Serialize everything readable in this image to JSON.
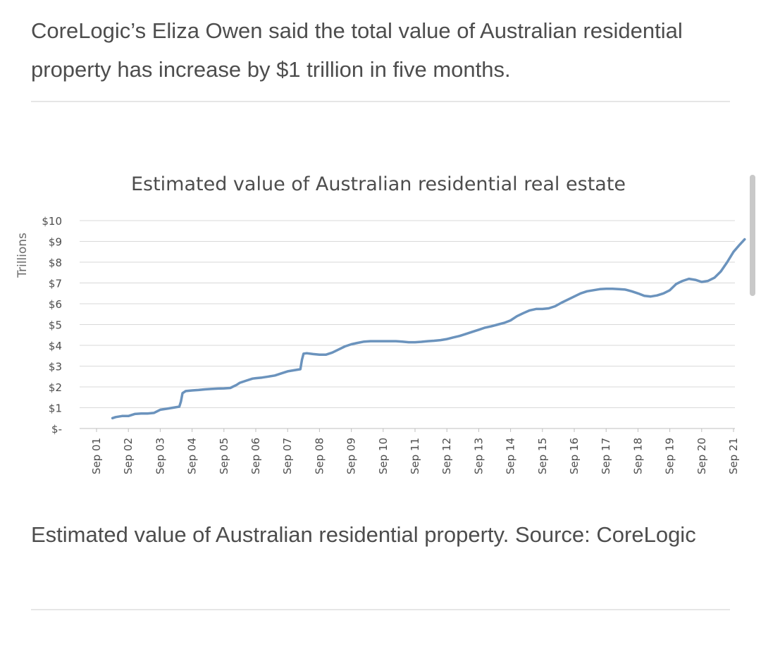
{
  "article": {
    "intro_text": "CoreLogic’s Eliza Owen said the total value of Australian residential property has increase by $1 trillion in five months.",
    "caption_text": "Estimated value of Australian residential property. Source: CoreLogic"
  },
  "colors": {
    "line": "#6b93bd",
    "grid": "#d9d9d9",
    "text": "#4d4d4d"
  },
  "chart_data": {
    "type": "line",
    "title": "Estimated value of Australian residential real estate",
    "ylabel": "Trillions",
    "xlabel": "",
    "ylim": [
      0,
      10
    ],
    "y_tick_labels": [
      "$-",
      "$1",
      "$2",
      "$3",
      "$4",
      "$5",
      "$6",
      "$7",
      "$8",
      "$9",
      "$10"
    ],
    "x_tick_labels": [
      "Sep 01",
      "Sep 02",
      "Sep 03",
      "Sep 04",
      "Sep 05",
      "Sep 06",
      "Sep 07",
      "Sep 08",
      "Sep 09",
      "Sep 10",
      "Sep 11",
      "Sep 12",
      "Sep 13",
      "Sep 14",
      "Sep 15",
      "Sep 16",
      "Sep 17",
      "Sep 18",
      "Sep 19",
      "Sep 20",
      "Sep 21"
    ],
    "grid": true,
    "legend": "none",
    "series": [
      {
        "points": [
          [
            0.5,
            0.5
          ],
          [
            0.6,
            0.55
          ],
          [
            0.8,
            0.6
          ],
          [
            1.0,
            0.6
          ],
          [
            1.2,
            0.7
          ],
          [
            1.4,
            0.72
          ],
          [
            1.6,
            0.72
          ],
          [
            1.8,
            0.75
          ],
          [
            2.0,
            0.9
          ],
          [
            2.2,
            0.95
          ],
          [
            2.4,
            1.0
          ],
          [
            2.6,
            1.05
          ],
          [
            2.65,
            1.3
          ],
          [
            2.7,
            1.7
          ],
          [
            2.8,
            1.8
          ],
          [
            3.0,
            1.83
          ],
          [
            3.2,
            1.85
          ],
          [
            3.4,
            1.88
          ],
          [
            3.6,
            1.9
          ],
          [
            3.8,
            1.92
          ],
          [
            4.0,
            1.93
          ],
          [
            4.2,
            1.95
          ],
          [
            4.4,
            2.1
          ],
          [
            4.5,
            2.2
          ],
          [
            4.7,
            2.3
          ],
          [
            4.9,
            2.4
          ],
          [
            5.0,
            2.42
          ],
          [
            5.2,
            2.45
          ],
          [
            5.4,
            2.5
          ],
          [
            5.6,
            2.55
          ],
          [
            5.8,
            2.65
          ],
          [
            6.0,
            2.75
          ],
          [
            6.2,
            2.8
          ],
          [
            6.4,
            2.85
          ],
          [
            6.45,
            3.3
          ],
          [
            6.5,
            3.6
          ],
          [
            6.6,
            3.62
          ],
          [
            6.8,
            3.58
          ],
          [
            7.0,
            3.55
          ],
          [
            7.2,
            3.55
          ],
          [
            7.4,
            3.65
          ],
          [
            7.6,
            3.8
          ],
          [
            7.8,
            3.95
          ],
          [
            8.0,
            4.05
          ],
          [
            8.2,
            4.12
          ],
          [
            8.4,
            4.18
          ],
          [
            8.6,
            4.2
          ],
          [
            8.8,
            4.2
          ],
          [
            9.0,
            4.2
          ],
          [
            9.2,
            4.2
          ],
          [
            9.4,
            4.2
          ],
          [
            9.6,
            4.18
          ],
          [
            9.8,
            4.15
          ],
          [
            10.0,
            4.15
          ],
          [
            10.2,
            4.17
          ],
          [
            10.4,
            4.2
          ],
          [
            10.6,
            4.22
          ],
          [
            10.8,
            4.25
          ],
          [
            11.0,
            4.3
          ],
          [
            11.2,
            4.38
          ],
          [
            11.4,
            4.45
          ],
          [
            11.6,
            4.55
          ],
          [
            11.8,
            4.65
          ],
          [
            12.0,
            4.75
          ],
          [
            12.2,
            4.85
          ],
          [
            12.4,
            4.92
          ],
          [
            12.6,
            5.0
          ],
          [
            12.8,
            5.08
          ],
          [
            13.0,
            5.2
          ],
          [
            13.2,
            5.4
          ],
          [
            13.4,
            5.55
          ],
          [
            13.6,
            5.68
          ],
          [
            13.8,
            5.75
          ],
          [
            14.0,
            5.75
          ],
          [
            14.2,
            5.78
          ],
          [
            14.4,
            5.88
          ],
          [
            14.6,
            6.05
          ],
          [
            14.8,
            6.2
          ],
          [
            15.0,
            6.35
          ],
          [
            15.2,
            6.5
          ],
          [
            15.4,
            6.6
          ],
          [
            15.6,
            6.65
          ],
          [
            15.8,
            6.7
          ],
          [
            16.0,
            6.72
          ],
          [
            16.2,
            6.72
          ],
          [
            16.4,
            6.7
          ],
          [
            16.6,
            6.68
          ],
          [
            16.8,
            6.6
          ],
          [
            17.0,
            6.5
          ],
          [
            17.2,
            6.38
          ],
          [
            17.4,
            6.35
          ],
          [
            17.6,
            6.4
          ],
          [
            17.8,
            6.5
          ],
          [
            18.0,
            6.65
          ],
          [
            18.2,
            6.95
          ],
          [
            18.4,
            7.1
          ],
          [
            18.6,
            7.2
          ],
          [
            18.8,
            7.15
          ],
          [
            19.0,
            7.05
          ],
          [
            19.2,
            7.1
          ],
          [
            19.4,
            7.25
          ],
          [
            19.6,
            7.55
          ],
          [
            19.8,
            8.0
          ],
          [
            20.0,
            8.5
          ],
          [
            20.2,
            8.85
          ],
          [
            20.35,
            9.1
          ]
        ]
      }
    ]
  }
}
